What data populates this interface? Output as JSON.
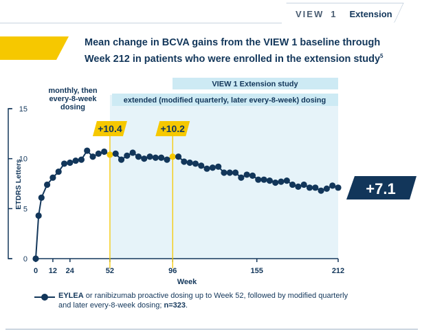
{
  "header": {
    "brand": "VIEW 1",
    "brand_word": "VIEW",
    "brand_num": "1",
    "tab_label": "Extension"
  },
  "title": {
    "line1": "Mean change in BCVA gains from the VIEW 1 baseline through",
    "line2": "Week 212 in patients who were enrolled in the extension study",
    "ref": "5"
  },
  "colors": {
    "navy": "#12365a",
    "gold": "#f6c800",
    "lightblue": "#e6f3f9",
    "bandblue": "#cdeaf4"
  },
  "legend": {
    "bold1": "EYLEA",
    "text1": " or ranibizumab proactive dosing up to Week 52, followed by modified quarterly and later every-8-week dosing; ",
    "bold2": "n=323",
    "text2": "."
  },
  "chart_data": {
    "type": "line",
    "ylabel": "ETDRS Letters",
    "xlabel": "Week",
    "xlim": [
      0,
      212
    ],
    "ylim": [
      0,
      15
    ],
    "x_ticks": [
      "0",
      "12",
      "24",
      "52",
      "96",
      "155",
      "212"
    ],
    "x_tick_values": [
      0,
      12,
      24,
      52,
      96,
      155,
      212
    ],
    "y_ticks": [
      "0",
      "5",
      "10",
      "15"
    ],
    "y_tick_values": [
      0,
      5,
      10,
      15
    ],
    "phase_label_1": "monthly, then every-8-week dosing",
    "phase_label_1_lines": [
      "monthly, then",
      "every-8-week",
      "dosing"
    ],
    "extension_label": "VIEW 1 Extension study",
    "extension_dosing_label": "extended (modified quarterly, later every-8-week) dosing",
    "callouts": [
      {
        "x": 52,
        "y": 10.4,
        "label": "+10.4"
      },
      {
        "x": 96,
        "y": 10.2,
        "label": "+10.2"
      }
    ],
    "end_label": "+7.1",
    "series": [
      {
        "x": [
          0,
          2,
          4,
          8,
          12,
          16,
          20,
          24,
          28,
          32,
          36,
          40,
          44,
          48,
          52,
          56,
          60,
          64,
          68,
          72,
          76,
          80,
          84,
          88,
          92,
          96,
          100,
          104,
          108,
          112,
          116,
          120,
          124,
          128,
          132,
          136,
          140,
          144,
          148,
          152,
          156,
          160,
          164,
          168,
          172,
          176,
          180,
          184,
          188,
          192,
          196,
          200,
          204,
          208,
          212
        ],
        "values": [
          0,
          4.3,
          6.1,
          7.4,
          8.1,
          8.7,
          9.5,
          9.6,
          9.8,
          9.9,
          10.8,
          10.2,
          10.5,
          10.7,
          10.4,
          10.5,
          9.9,
          10.3,
          10.6,
          10.2,
          10.0,
          10.2,
          10.1,
          10.1,
          9.9,
          10.2,
          10.2,
          9.7,
          9.6,
          9.5,
          9.3,
          9.0,
          9.1,
          9.2,
          8.6,
          8.6,
          8.6,
          8.1,
          8.4,
          8.3,
          7.9,
          7.9,
          7.8,
          7.6,
          7.7,
          7.8,
          7.4,
          7.2,
          7.4,
          7.1,
          7.1,
          6.8,
          7.0,
          7.3,
          7.1
        ]
      }
    ]
  }
}
